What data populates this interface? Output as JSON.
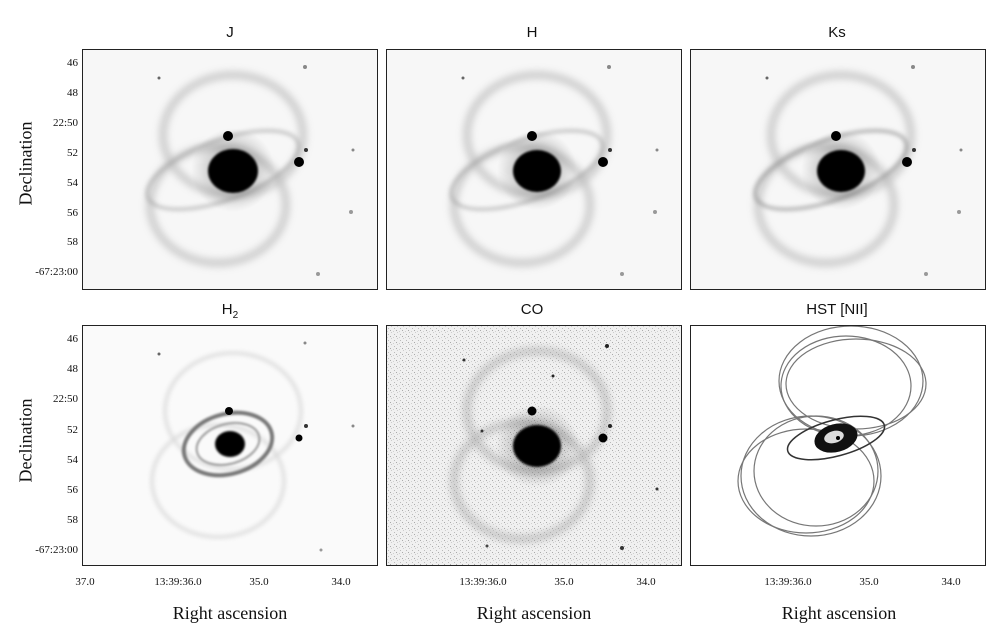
{
  "panels": [
    {
      "id": "j",
      "title": "J"
    },
    {
      "id": "h",
      "title": "H"
    },
    {
      "id": "ks",
      "title": "Ks"
    },
    {
      "id": "h2",
      "title": "H",
      "title_sub": "2"
    },
    {
      "id": "co",
      "title": "CO"
    },
    {
      "id": "hst",
      "title": "HST [NII]"
    }
  ],
  "axes": {
    "ylabel": "Declination",
    "xlabel": "Right ascension",
    "yticks": [
      "46",
      "48",
      "22:50",
      "52",
      "54",
      "56",
      "58",
      "-67:23:00"
    ],
    "xticks_first": [
      "37.0",
      "13:39:36.0",
      "35.0",
      "34.0"
    ],
    "xticks_other": [
      "13:39:36.0",
      "35.0",
      "34.0"
    ]
  }
}
